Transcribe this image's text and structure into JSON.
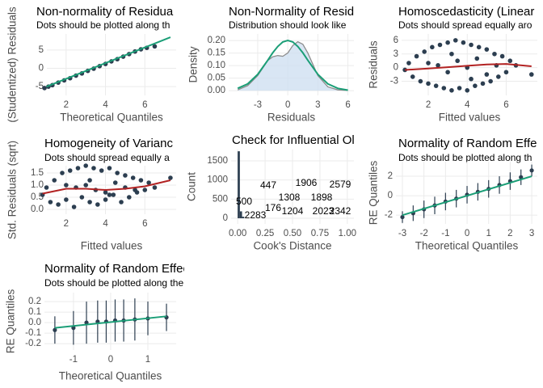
{
  "chart_data": [
    {
      "type": "qq",
      "title": "Non-normality of Residua",
      "subtitle": "Dots should be plotted along th",
      "xlabel": "Theoretical Quantiles",
      "ylabel": "(Studentized) Residuals",
      "xlim": [
        1.02,
        7.59
      ],
      "ylim": [
        -7.4,
        9.4
      ],
      "xticks": [
        2,
        4,
        6
      ],
      "yticks": [
        -5,
        0,
        5
      ],
      "series": [
        {
          "style": "points",
          "color": "#2c3e50",
          "x": [
            0.9,
            1.1,
            1.3,
            1.6,
            1.9,
            2.2,
            2.5,
            2.8,
            3.1,
            3.4,
            3.7,
            4.0,
            4.3,
            4.6,
            4.9,
            5.2,
            5.5,
            5.8,
            6.1,
            6.5
          ],
          "values": [
            -5.4,
            -5.0,
            -4.6,
            -3.9,
            -3.3,
            -2.7,
            -2.0,
            -1.4,
            -0.7,
            -0.1,
            0.6,
            1.2,
            1.9,
            2.5,
            3.2,
            3.9,
            4.6,
            5.2,
            5.6,
            6.0
          ]
        },
        {
          "style": "line",
          "color": "#1b9e77",
          "x": [
            1.0,
            7.3
          ],
          "values": [
            -5.0,
            8.5
          ]
        }
      ]
    },
    {
      "type": "density",
      "title": "Non-Normality of Resid",
      "subtitle": "Distribution should look like",
      "xlabel": "Residuals",
      "ylabel": "Density",
      "xlim": [
        -5.9,
        6.6
      ],
      "ylim": [
        -0.019,
        0.226
      ],
      "xticks": [
        -3,
        0,
        3,
        6
      ],
      "yticks": [
        {
          "value": 0,
          "label": "0.00"
        },
        {
          "value": 0.05,
          "label": "0.05"
        },
        {
          "value": 0.1,
          "label": "0.10"
        },
        {
          "value": 0.15,
          "label": "0.15"
        },
        {
          "value": 0.2,
          "label": "0.20"
        }
      ],
      "series": [
        {
          "style": "area",
          "color": "#8c8c8c",
          "fill": "#cfe0f1",
          "x": [
            -5,
            -4,
            -3,
            -2,
            -1.5,
            -1,
            -0.5,
            0,
            0.5,
            1,
            1.5,
            2,
            3,
            4,
            5,
            6
          ],
          "values": [
            0.003,
            0.02,
            0.06,
            0.12,
            0.135,
            0.14,
            0.137,
            0.15,
            0.18,
            0.195,
            0.185,
            0.15,
            0.06,
            0.015,
            0.003,
            0.001
          ]
        },
        {
          "style": "line",
          "color": "#1b9e77",
          "x": [
            -5,
            -4,
            -3,
            -2,
            -1.5,
            -1,
            -0.5,
            0,
            0.5,
            1,
            1.5,
            2,
            3,
            4,
            5,
            6
          ],
          "values": [
            0.009,
            0.027,
            0.065,
            0.121,
            0.151,
            0.176,
            0.194,
            0.2,
            0.194,
            0.176,
            0.151,
            0.121,
            0.065,
            0.027,
            0.009,
            0.002
          ]
        }
      ]
    },
    {
      "type": "scatter",
      "title": "Homoscedasticity (Linear",
      "subtitle": "Dots should spread equally aro",
      "xlabel": "Fitted values",
      "ylabel": "Residuals",
      "xlim": [
        0.63,
        7.6
      ],
      "ylim": [
        -6.1,
        7.4
      ],
      "xticks": [
        2,
        4,
        6
      ],
      "yticks": [
        -3,
        0,
        3,
        6
      ],
      "series": [
        {
          "style": "points",
          "color": "#2c3e50",
          "x": [
            0.8,
            1.0,
            1.2,
            1.4,
            1.6,
            1.8,
            2.0,
            2.2,
            2.4,
            2.6,
            2.8,
            3.0,
            3.2,
            3.4,
            3.6,
            3.8,
            4.0,
            4.2,
            4.4,
            4.6,
            4.8,
            5.0,
            5.2,
            5.4,
            5.6,
            5.8,
            6.0,
            6.2,
            6.5,
            7.3,
            2.5,
            3.0,
            3.5,
            4.0,
            4.5,
            5.0,
            3.2,
            4.2,
            2.0,
            5.5
          ],
          "values": [
            -0.5,
            1.0,
            -2.0,
            2.5,
            -3.0,
            3.5,
            -3.5,
            4.5,
            -4.0,
            5.0,
            -4.5,
            5.5,
            -5.0,
            6.0,
            -4.5,
            5.5,
            -5.0,
            5.0,
            -4.0,
            4.5,
            -3.5,
            4.0,
            -3.0,
            3.0,
            -2.0,
            2.5,
            -1.0,
            1.5,
            0.5,
            -1.5,
            0.5,
            -1.0,
            1.5,
            0.0,
            2.0,
            -1.5,
            3.0,
            -2.5,
            1.0,
            0.5
          ]
        },
        {
          "style": "line",
          "color": "#b22222",
          "x": [
            0.8,
            2,
            3,
            4,
            5,
            6,
            7.3
          ],
          "values": [
            -0.5,
            -0.2,
            0.1,
            0.4,
            0.7,
            0.8,
            0.3
          ]
        }
      ]
    },
    {
      "type": "scatter",
      "title": "Homogeneity of Varianc",
      "subtitle": "Dots should spread equally a",
      "xlabel": "Fitted values",
      "ylabel": "Std. Residuals (sqrt)",
      "xlim": [
        1.02,
        7.59
      ],
      "ylim": [
        -0.2,
        1.8
      ],
      "xticks": [
        2,
        4,
        6
      ],
      "yticks": [
        {
          "value": 0,
          "label": "0.0"
        },
        0.5,
        {
          "value": 1,
          "label": "1.0"
        },
        1.5
      ],
      "series": [
        {
          "style": "points",
          "color": "#2c3e50",
          "x": [
            0.8,
            1.0,
            1.2,
            1.4,
            1.6,
            1.8,
            2.0,
            2.2,
            2.4,
            2.6,
            2.8,
            3.0,
            3.2,
            3.4,
            3.6,
            3.8,
            4.0,
            4.2,
            4.4,
            4.6,
            4.8,
            5.0,
            5.2,
            5.4,
            5.6,
            5.8,
            6.0,
            6.2,
            6.5,
            7.3,
            2.5,
            3.0,
            3.5,
            4.0,
            4.5,
            5.0,
            3.2,
            4.2,
            2.0,
            5.5
          ],
          "values": [
            0.6,
            0.9,
            0.3,
            1.2,
            0.2,
            1.5,
            0.4,
            1.6,
            0.1,
            1.7,
            0.5,
            1.8,
            0.3,
            1.7,
            0.2,
            1.6,
            0.4,
            1.7,
            0.6,
            1.5,
            0.3,
            1.4,
            0.5,
            1.3,
            0.7,
            1.2,
            0.8,
            1.1,
            0.9,
            1.3,
            0.9,
            1.0,
            0.8,
            0.7,
            1.1,
            0.9,
            1.2,
            0.6,
            1.0,
            0.8
          ]
        },
        {
          "style": "line",
          "color": "#b22222",
          "x": [
            0.8,
            2,
            3,
            4,
            5,
            6,
            7.3
          ],
          "values": [
            0.65,
            0.85,
            0.85,
            0.8,
            0.85,
            0.95,
            1.2
          ]
        }
      ]
    },
    {
      "type": "histogram",
      "title": "Check for Influential Ol",
      "xlabel": "Cook's Distance",
      "ylabel": "Count",
      "xlim": [
        -0.06,
        1.06
      ],
      "ylim": [
        -148,
        1795
      ],
      "xticks": [
        {
          "value": 0,
          "label": "0.00"
        },
        0.25,
        {
          "value": 0.5,
          "label": "0.50"
        },
        0.75,
        {
          "value": 1,
          "label": "1.00"
        }
      ],
      "yticks": [
        0,
        500,
        1000,
        1500
      ],
      "bins": [
        0,
        0.02,
        0.04,
        0.06
      ],
      "values": [
        1750,
        180,
        40
      ],
      "color": "#2c3e50",
      "annotations": [
        "447",
        "1906",
        "2579",
        "500",
        "1308",
        "1898",
        "176",
        "2283",
        "1204",
        "2023",
        "2342"
      ]
    },
    {
      "type": "qq-errorbar",
      "title": "Normality of Random Effe",
      "subtitle": "Dots should be plotted along th",
      "xlabel": "Theoretical Quantiles",
      "ylabel": "RE Quantiles",
      "xlim": [
        -3.3,
        3.26
      ],
      "ylim": [
        -2.9,
        3.5
      ],
      "xticks": [
        -3,
        -2,
        -1,
        0,
        1,
        2,
        3
      ],
      "yticks": [
        -2,
        0,
        2
      ],
      "series": [
        {
          "style": "points",
          "color": "#2c3e50",
          "x": [
            -3,
            -2.5,
            -2,
            -1.5,
            -1,
            -0.5,
            0,
            0.5,
            1,
            1.5,
            2,
            2.5,
            3
          ],
          "values": [
            -2.2,
            -1.8,
            -1.4,
            -1.0,
            -0.6,
            -0.3,
            0.1,
            0.4,
            0.7,
            1.1,
            1.5,
            1.9,
            2.6
          ],
          "errors": [
            0.6,
            0.8,
            0.9,
            0.9,
            0.9,
            0.9,
            0.9,
            0.9,
            0.9,
            0.9,
            0.9,
            0.8,
            0.6
          ]
        },
        {
          "style": "line",
          "color": "#1b9e77",
          "x": [
            -3,
            3
          ],
          "values": [
            -2,
            2
          ]
        }
      ]
    },
    {
      "type": "qq-errorbar",
      "title": "Normality of Random Effects (tectonic_settings)",
      "subtitle": "Dots should be plotted along the line",
      "xlabel": "Theoretical Quantiles",
      "ylabel": "RE Quantiles",
      "xlim": [
        -1.78,
        1.76
      ],
      "ylim": [
        -0.26,
        0.285
      ],
      "xticks": [
        -1,
        0,
        1
      ],
      "yticks": [
        -0.2,
        -0.1,
        {
          "value": 0,
          "label": "0.0"
        },
        0.1,
        0.2
      ],
      "series": [
        {
          "style": "points",
          "color": "#2c3e50",
          "x": [
            -1.5,
            -1.0,
            -0.65,
            -0.35,
            -0.12,
            0.12,
            0.35,
            0.65,
            1.0,
            1.5
          ],
          "values": [
            -0.07,
            -0.05,
            0.0,
            0.01,
            0.01,
            0.02,
            0.02,
            0.03,
            0.04,
            0.05
          ],
          "errors": [
            0.13,
            0.16,
            0.2,
            0.2,
            0.2,
            0.2,
            0.2,
            0.2,
            0.16,
            0.13
          ]
        },
        {
          "style": "line",
          "color": "#1b9e77",
          "x": [
            -1.5,
            1.5
          ],
          "values": [
            -0.05,
            0.06
          ]
        }
      ]
    }
  ]
}
